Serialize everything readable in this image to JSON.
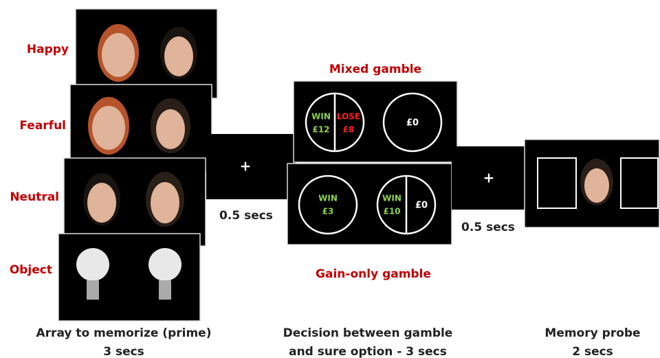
{
  "prime": {
    "labels": [
      "Happy",
      "Fearful",
      "Neutral",
      "Object"
    ],
    "caption": [
      "Array to memorize (prime)",
      "3 secs"
    ]
  },
  "fixation_1": {
    "symbol": "+",
    "duration": "0.5 secs"
  },
  "decision": {
    "mixed": {
      "title": "Mixed gamble",
      "win": "WIN",
      "win_amount": "£12",
      "lose": "LOSE",
      "lose_amount": "£8",
      "sure": "£0"
    },
    "gain_only": {
      "title": "Gain-only gamble",
      "sure_win": "WIN",
      "sure_amount": "£3",
      "win": "WIN",
      "win_amount": "£10",
      "other": "£0"
    },
    "caption": [
      "Decision between gamble",
      "and sure option - 3 secs"
    ]
  },
  "fixation_2": {
    "symbol": "+",
    "duration": "0.5 secs"
  },
  "probe": {
    "caption": [
      "Memory probe",
      "2 secs"
    ]
  }
}
